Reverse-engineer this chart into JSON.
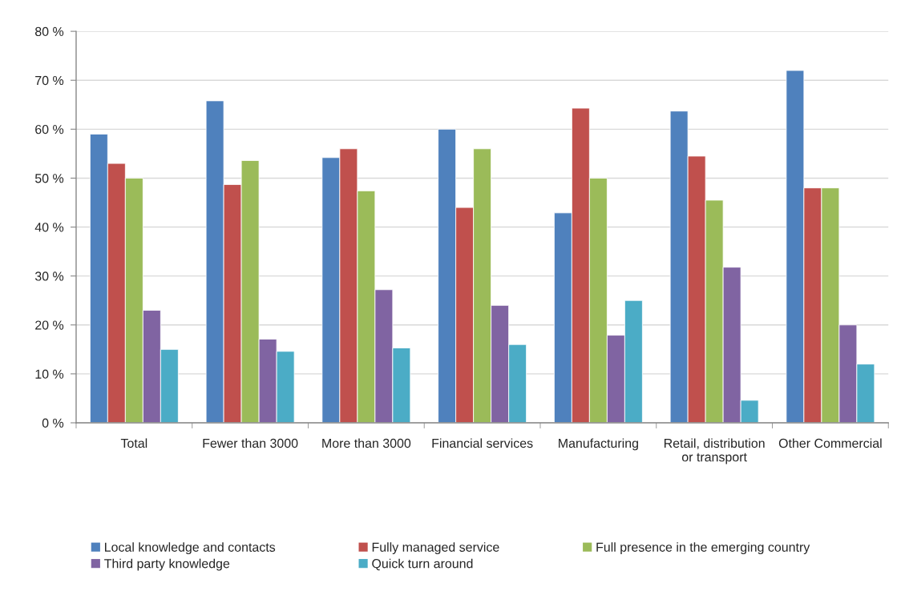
{
  "chart_data": {
    "type": "bar",
    "categories": [
      "Total",
      "Fewer than 3000",
      "More than 3000",
      "Financial services",
      "Manufacturing",
      "Retail, distribution or transport",
      "Other Commercial"
    ],
    "series": [
      {
        "name": "Local knowledge and contacts",
        "color": "#4f81bd",
        "values": [
          59.0,
          65.8,
          54.2,
          60.0,
          42.9,
          63.7,
          72.0
        ]
      },
      {
        "name": "Fully managed service",
        "color": "#c0504d",
        "values": [
          53.0,
          48.7,
          56.0,
          44.0,
          64.3,
          54.5,
          48.0
        ]
      },
      {
        "name": "Full presence in the emerging country",
        "color": "#9bbb59",
        "values": [
          50.0,
          53.6,
          47.4,
          56.0,
          50.0,
          45.5,
          48.0
        ]
      },
      {
        "name": "Third party knowledge",
        "color": "#8064a2",
        "values": [
          23.0,
          17.1,
          27.2,
          24.0,
          17.9,
          31.8,
          20.0
        ]
      },
      {
        "name": "Quick turn around",
        "color": "#4bacc6",
        "values": [
          15.0,
          14.6,
          15.3,
          16.0,
          25.0,
          4.6,
          12.0
        ]
      }
    ],
    "ylim": [
      0,
      80
    ],
    "yticks": [
      {
        "value": 0,
        "label": "0 %"
      },
      {
        "value": 10,
        "label": "10 %"
      },
      {
        "value": 20,
        "label": "20 %"
      },
      {
        "value": 30,
        "label": "30 %"
      },
      {
        "value": 40,
        "label": "40 %"
      },
      {
        "value": 50,
        "label": "50 %"
      },
      {
        "value": 60,
        "label": "60 %"
      },
      {
        "value": 70,
        "label": "70 %"
      },
      {
        "value": 80,
        "label": "80 %"
      }
    ],
    "grid": "y",
    "legend": "bottom"
  }
}
